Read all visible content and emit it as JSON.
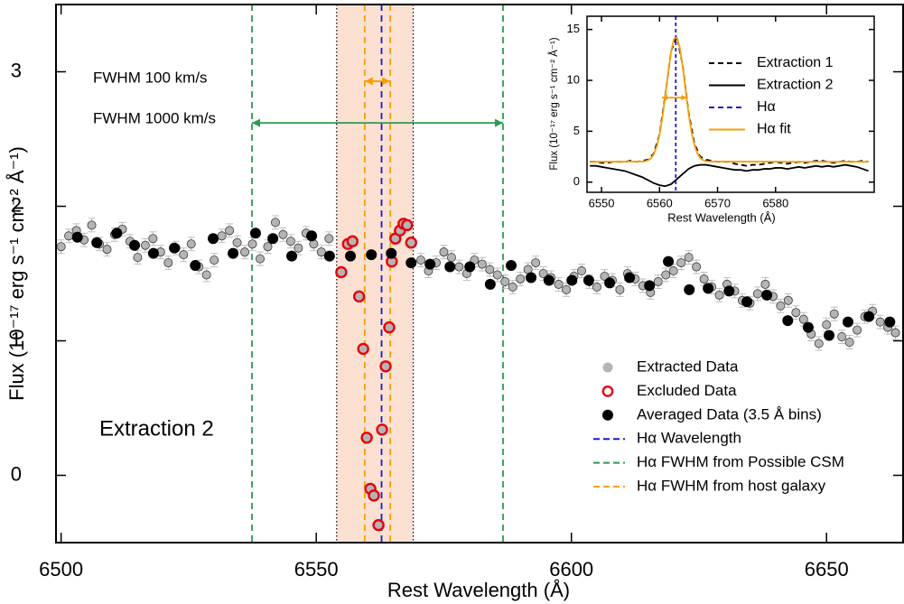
{
  "chart_data": [
    {
      "type": "scatter",
      "xlabel": "Rest Wavelength (Å)",
      "ylabel": "Flux (10⁻¹⁷ erg s⁻¹ cm⁻² Å⁻¹)",
      "label": "Extraction 2",
      "xlim": [
        6499,
        6665
      ],
      "ylim": [
        -0.5,
        3.5
      ],
      "xticks": [
        6500,
        6550,
        6600,
        6650
      ],
      "yticks": [
        0,
        1,
        2,
        3
      ],
      "band": {
        "x": [
          6554,
          6569
        ],
        "color": "#fbdccb"
      },
      "series": [
        {
          "name": "Extracted Data",
          "color": "#aaaaaa",
          "marker": "filled",
          "error": 0.05,
          "x": [
            6500,
            6501.5,
            6503,
            6504.5,
            6506,
            6507.5,
            6509,
            6510.5,
            6512,
            6513.5,
            6515,
            6516.5,
            6518,
            6519.5,
            6521,
            6522.5,
            6524,
            6525.5,
            6527,
            6528.5,
            6530,
            6531.5,
            6533,
            6534.5,
            6536,
            6537.5,
            6539,
            6540.5,
            6542,
            6543.5,
            6545,
            6546.5,
            6548,
            6549.5,
            6551,
            6552.5,
            6570.5,
            6572,
            6573.5,
            6575,
            6576.5,
            6578,
            6579.5,
            6581,
            6582.5,
            6584,
            6585.5,
            6587,
            6588.5,
            6590,
            6591.5,
            6593,
            6594.5,
            6596,
            6597.5,
            6599,
            6600.5,
            6602,
            6603.5,
            6605,
            6606.5,
            6608,
            6609.5,
            6611,
            6612.5,
            6614,
            6615.5,
            6617,
            6618.5,
            6620,
            6621.5,
            6623,
            6624.5,
            6626,
            6627.5,
            6629,
            6630.5,
            6632,
            6633.5,
            6635,
            6636.5,
            6638,
            6639.5,
            6641,
            6642.5,
            6644,
            6645.5,
            6647,
            6648.5,
            6650,
            6651.5,
            6653,
            6654.5,
            6656,
            6657.5,
            6659,
            6660.5,
            6662,
            6663.5
          ],
          "values": [
            1.7,
            1.78,
            1.82,
            1.75,
            1.86,
            1.72,
            1.68,
            1.79,
            1.83,
            1.74,
            1.62,
            1.71,
            1.76,
            1.66,
            1.58,
            1.69,
            1.64,
            1.72,
            1.55,
            1.49,
            1.6,
            1.78,
            1.82,
            1.73,
            1.66,
            1.72,
            1.61,
            1.7,
            1.88,
            1.79,
            1.74,
            1.69,
            1.8,
            1.72,
            1.66,
            1.76,
            1.6,
            1.52,
            1.58,
            1.66,
            1.62,
            1.55,
            1.5,
            1.6,
            1.57,
            1.53,
            1.49,
            1.44,
            1.4,
            1.46,
            1.53,
            1.58,
            1.5,
            1.47,
            1.42,
            1.38,
            1.48,
            1.52,
            1.44,
            1.4,
            1.48,
            1.45,
            1.38,
            1.5,
            1.46,
            1.41,
            1.36,
            1.44,
            1.49,
            1.52,
            1.58,
            1.62,
            1.55,
            1.46,
            1.4,
            1.34,
            1.42,
            1.37,
            1.3,
            1.28,
            1.35,
            1.42,
            1.33,
            1.26,
            1.3,
            1.21,
            1.16,
            1.05,
            0.98,
            1.12,
            1.2,
            1.03,
            0.99,
            1.08,
            1.18,
            1.22,
            1.14,
            1.1,
            1.06
          ]
        },
        {
          "name": "Excluded Data",
          "color": "#e8000b",
          "marker": "ring",
          "x": [
            6554.9,
            6556.2,
            6557.1,
            6558.4,
            6559.2,
            6559.9,
            6560.6,
            6561.3,
            6562.2,
            6562.9,
            6563.6,
            6564.3,
            6564.8,
            6565.5,
            6566.4,
            6567.1,
            6567.8,
            6568.6
          ],
          "values": [
            1.51,
            1.72,
            1.74,
            1.33,
            0.94,
            0.28,
            -0.1,
            -0.15,
            -0.37,
            0.34,
            0.81,
            1.1,
            1.59,
            1.76,
            1.82,
            1.87,
            1.86,
            1.73
          ]
        },
        {
          "name": "Averaged Data (3.5 Å bins)",
          "color": "#000000",
          "marker": "dot",
          "x": [
            6503.2,
            6507.0,
            6510.9,
            6514.4,
            6518.1,
            6522.2,
            6526.3,
            6529.8,
            6533.7,
            6538.1,
            6541.5,
            6545.2,
            6549.1,
            6552.6,
            6556.7,
            6560.8,
            6564.7,
            6568.6,
            6572.3,
            6576.2,
            6580.1,
            6584.1,
            6588.2,
            6592.1,
            6595.6,
            6600.1,
            6603.4,
            6607.5,
            6611.4,
            6615.3,
            6619.0,
            6623.1,
            6626.8,
            6630.9,
            6634.4,
            6638.3,
            6642.4,
            6646.4,
            6650.5,
            6654.2,
            6658.3,
            6662.4
          ],
          "values": [
            1.77,
            1.73,
            1.8,
            1.71,
            1.65,
            1.69,
            1.56,
            1.76,
            1.65,
            1.8,
            1.76,
            1.63,
            1.78,
            1.63,
            1.63,
            1.64,
            1.65,
            1.58,
            1.57,
            1.55,
            1.55,
            1.42,
            1.56,
            1.47,
            1.45,
            1.45,
            1.45,
            1.43,
            1.47,
            1.41,
            1.59,
            1.38,
            1.39,
            1.37,
            1.29,
            1.34,
            1.15,
            1.1,
            1.04,
            1.14,
            1.18,
            1.14
          ]
        }
      ],
      "vlines": [
        {
          "name": "Hα Wavelength",
          "color": "#1a1acc",
          "x": [
            6562.8
          ]
        },
        {
          "name": "Hα FWHM from Possible CSM",
          "color": "#2e9a4e",
          "x": [
            6537.4,
            6586.6
          ]
        },
        {
          "name": "Hα FWHM from host galaxy",
          "color": "#f5a000",
          "x": [
            6559.5,
            6564.5
          ]
        }
      ],
      "annotations": [
        {
          "text": "FWHM 100 km/s",
          "color": "#f5a000",
          "arrow": {
            "x": [
              6559.5,
              6564.5
            ],
            "y": 2.93
          }
        },
        {
          "text": "FWHM 1000 km/s",
          "color": "#2e9a4e",
          "arrow": {
            "x": [
              6537.4,
              6586.6
            ],
            "y": 2.62
          }
        }
      ],
      "legend": "lower right"
    },
    {
      "type": "line",
      "xlabel": "Rest Wavelength (Å)",
      "ylabel": "Flux (10⁻¹⁷ erg s⁻¹ cm⁻² Å⁻¹)",
      "xlim": [
        6547.5,
        6597
      ],
      "ylim": [
        -1,
        16.3
      ],
      "xticks": [
        6550,
        6560,
        6570,
        6580
      ],
      "yticks": [
        0,
        5,
        10,
        15
      ],
      "x": [
        6548,
        6549,
        6550,
        6551,
        6552,
        6553,
        6554,
        6555,
        6556,
        6557,
        6558,
        6559,
        6560,
        6561,
        6562,
        6563,
        6564,
        6565,
        6566,
        6567,
        6568,
        6569,
        6570,
        6571,
        6572,
        6573,
        6574,
        6575,
        6576,
        6577,
        6578,
        6579,
        6580,
        6581,
        6582,
        6583,
        6584,
        6585,
        6586,
        6587,
        6588,
        6589,
        6590,
        6591,
        6592,
        6593,
        6594,
        6595,
        6596
      ],
      "series": [
        {
          "name": "Extraction 1",
          "color": "#000000",
          "dash": true,
          "values": [
            2.0,
            2.0,
            1.9,
            1.9,
            2.0,
            2.0,
            2.0,
            2.1,
            2.0,
            2.1,
            2.2,
            2.8,
            4.7,
            8.6,
            12.9,
            14.3,
            11.4,
            6.9,
            3.8,
            2.5,
            2.2,
            2.1,
            2.0,
            2.0,
            2.0,
            1.8,
            1.7,
            1.6,
            1.7,
            1.7,
            1.8,
            1.9,
            2.0,
            1.9,
            1.8,
            1.9,
            2.0,
            1.9,
            2.0,
            2.1,
            2.1,
            2.0,
            1.9,
            2.0,
            2.1,
            2.0,
            2.0,
            2.1,
            2.0
          ]
        },
        {
          "name": "Extraction 2",
          "color": "#000000",
          "dash": false,
          "values": [
            1.6,
            1.6,
            1.5,
            1.4,
            1.3,
            1.2,
            1.1,
            0.9,
            0.7,
            0.5,
            0.2,
            -0.1,
            -0.3,
            -0.4,
            -0.2,
            0.3,
            0.8,
            1.3,
            1.6,
            1.7,
            1.7,
            1.6,
            1.5,
            1.4,
            1.3,
            1.2,
            1.2,
            1.1,
            1.2,
            1.2,
            1.3,
            1.3,
            1.4,
            1.4,
            1.3,
            1.4,
            1.5,
            1.4,
            1.5,
            1.6,
            1.5,
            1.6,
            1.5,
            1.6,
            1.7,
            1.6,
            1.5,
            1.3,
            1.1
          ]
        },
        {
          "name": "Hα fit",
          "color": "#f5a000",
          "dash": false,
          "x": [
            6548,
            6557,
            6557.5,
            6558,
            6558.5,
            6559,
            6559.5,
            6560,
            6560.5,
            6561,
            6561.5,
            6562,
            6562.5,
            6563,
            6563.5,
            6564,
            6564.5,
            6565,
            6565.5,
            6566,
            6566.5,
            6567,
            6567.5,
            6568,
            6568.5,
            6596
          ],
          "values": [
            2.0,
            2.02,
            2.05,
            2.14,
            2.33,
            2.74,
            3.46,
            4.66,
            6.38,
            8.53,
            10.84,
            12.85,
            14.09,
            14.2,
            13.18,
            11.29,
            9.0,
            6.78,
            4.96,
            3.66,
            2.85,
            2.39,
            2.16,
            2.06,
            2.02,
            2.0
          ]
        }
      ],
      "vlines": [
        {
          "name": "Hα",
          "color": "#1a1acc",
          "x": [
            6562.8
          ]
        }
      ],
      "annotations": [
        {
          "color": "#f5a000",
          "arrow": {
            "x": [
              6560.4,
              6564.7
            ],
            "y": 8.3
          }
        }
      ],
      "legend": "upper right"
    }
  ]
}
